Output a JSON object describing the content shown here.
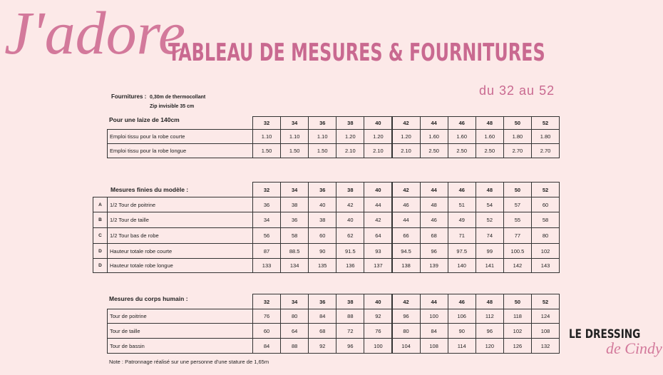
{
  "header": {
    "script": "J'adore",
    "title": "TABLEAU DE MESURES  & FOURNITURES",
    "subtitle": "du 32 au 52"
  },
  "fournitures": {
    "label": "Fournitures :",
    "items": [
      "0,30m de thermocollant",
      "Zip invisible 35 cm"
    ]
  },
  "tables": [
    {
      "title": "Pour une laize de 140cm",
      "columns": [
        32,
        34,
        36,
        38,
        40,
        42,
        44,
        46,
        48,
        50,
        52
      ],
      "rows": [
        {
          "label": "Emploi tissu pour la robe courte",
          "values": [
            "1.10",
            "1.10",
            "1.10",
            "1.20",
            "1.20",
            "1.20",
            "1.60",
            "1.60",
            "1.60",
            "1.80",
            "1.80"
          ]
        },
        {
          "label": "Emploi tissu pour la robe longue",
          "values": [
            "1.50",
            "1.50",
            "1.50",
            "2.10",
            "2.10",
            "2.10",
            "2.50",
            "2.50",
            "2.50",
            "2.70",
            "2.70"
          ]
        }
      ]
    },
    {
      "title": "Mesures finies du modèle :",
      "columns": [
        32,
        34,
        36,
        38,
        40,
        42,
        44,
        46,
        48,
        50,
        52
      ],
      "rows": [
        {
          "letter": "A",
          "label": "1/2 Tour de poitrine",
          "values": [
            36,
            38,
            40,
            42,
            44,
            46,
            48,
            51,
            54,
            57,
            60
          ]
        },
        {
          "letter": "B",
          "label": "1/2 Tour de taille",
          "values": [
            34,
            36,
            38,
            40,
            42,
            44,
            46,
            49,
            52,
            55,
            58
          ]
        },
        {
          "letter": "C",
          "label": "1/2 Tour bas de robe",
          "values": [
            56,
            58,
            60,
            62,
            64,
            66,
            68,
            71,
            74,
            77,
            80
          ]
        },
        {
          "letter": "D",
          "label": "Hauteur totale robe courte",
          "values": [
            87,
            88.5,
            90,
            91.5,
            93,
            94.5,
            96,
            97.5,
            99,
            100.5,
            102
          ]
        },
        {
          "letter": "D",
          "label": "Hauteur totale robe longue",
          "values": [
            133,
            134,
            135,
            136,
            137,
            138,
            139,
            140,
            141,
            142,
            143
          ]
        }
      ]
    },
    {
      "title": "Mesures du corps humain :",
      "columns": [
        32,
        34,
        36,
        38,
        40,
        42,
        44,
        46,
        48,
        50,
        52
      ],
      "rows": [
        {
          "label": "Tour de poitrine",
          "values": [
            76,
            80,
            84,
            88,
            92,
            96,
            100,
            106,
            112,
            118,
            124
          ]
        },
        {
          "label": "Tour de taille",
          "values": [
            60,
            64,
            68,
            72,
            76,
            80,
            84,
            90,
            96,
            102,
            108
          ]
        },
        {
          "label": "Tour de bassin",
          "values": [
            84,
            88,
            92,
            96,
            100,
            104,
            108,
            114,
            120,
            126,
            132
          ]
        }
      ]
    }
  ],
  "note": "Note : Patronnage réalisé sur une personne d'une stature de 1,65m",
  "brand": {
    "name": "LE DRESSING",
    "script": "de Cindy"
  }
}
